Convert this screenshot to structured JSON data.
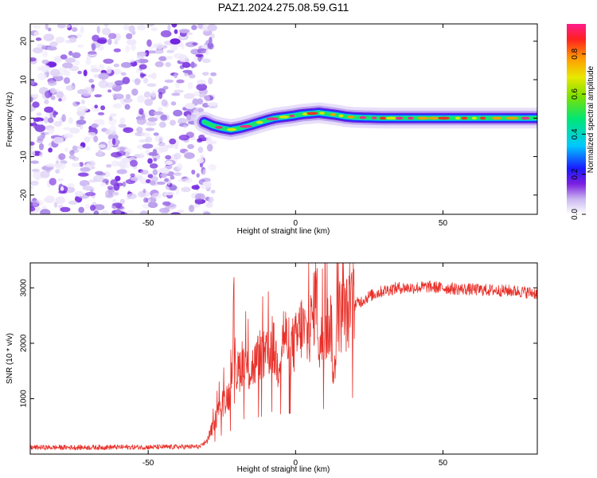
{
  "title": "PAZ1.2024.275.08.59.G11",
  "chart_data": [
    {
      "type": "heatmap",
      "xlabel": "Height of straight line (km)",
      "ylabel": "Frequency (Hz)",
      "xlim": [
        -90,
        82
      ],
      "ylim": [
        -25,
        24.5
      ],
      "xticks": [
        -50,
        0,
        50
      ],
      "yticks": [
        -20,
        -10,
        0,
        10,
        20
      ],
      "colorbar": {
        "label": "Normalized spectral amplitude",
        "range": [
          0.0,
          0.95
        ],
        "ticks": [
          0.0,
          0.2,
          0.4,
          0.6,
          0.8
        ]
      },
      "noise_region_x": [
        -90,
        -30
      ],
      "ridge": {
        "x": [
          -31,
          -28,
          -25,
          -22,
          -19,
          -16,
          -13,
          -10,
          -7,
          -4,
          -1,
          2,
          5,
          8,
          11,
          14,
          17,
          20,
          25,
          30,
          40,
          50,
          60,
          70,
          82
        ],
        "freq": [
          -1.0,
          -2.0,
          -2.6,
          -3.0,
          -2.6,
          -2.0,
          -1.3,
          -0.6,
          0.0,
          0.3,
          0.6,
          1.0,
          1.2,
          1.4,
          1.1,
          0.8,
          0.4,
          0.2,
          0.1,
          0.0,
          0.0,
          0.0,
          0.0,
          0.0,
          0.0
        ]
      }
    },
    {
      "type": "line",
      "xlabel": "Height of straight line (km)",
      "ylabel": "SNR (10 * v/v)",
      "xlim": [
        -90,
        82
      ],
      "ylim": [
        0,
        3450
      ],
      "xticks": [
        -50,
        0,
        50
      ],
      "yticks": [
        1000,
        2000,
        3000
      ],
      "series": [
        {
          "color": "#e8312a",
          "x": [
            -90,
            -80,
            -70,
            -60,
            -50,
            -40,
            -32,
            -30,
            -28,
            -26,
            -24,
            -22,
            -21,
            -20,
            -18,
            -16,
            -14,
            -12,
            -10,
            -8,
            -6,
            -4,
            -2,
            0,
            2,
            4,
            6,
            7,
            8,
            10,
            12,
            13,
            14,
            16,
            18,
            20,
            22,
            25,
            30,
            35,
            40,
            45,
            50,
            55,
            60,
            65,
            70,
            75,
            82
          ],
          "snr": [
            120,
            120,
            120,
            125,
            125,
            130,
            135,
            250,
            500,
            800,
            1000,
            1100,
            2700,
            1400,
            1700,
            1500,
            1600,
            1800,
            1700,
            2000,
            1600,
            2200,
            1900,
            2000,
            2300,
            2100,
            2500,
            3100,
            1900,
            2200,
            2400,
            1200,
            2500,
            2500,
            2550,
            2700,
            2750,
            2850,
            2950,
            3000,
            3000,
            3020,
            3000,
            2980,
            2970,
            2960,
            2950,
            2940,
            2900
          ]
        }
      ]
    }
  ]
}
